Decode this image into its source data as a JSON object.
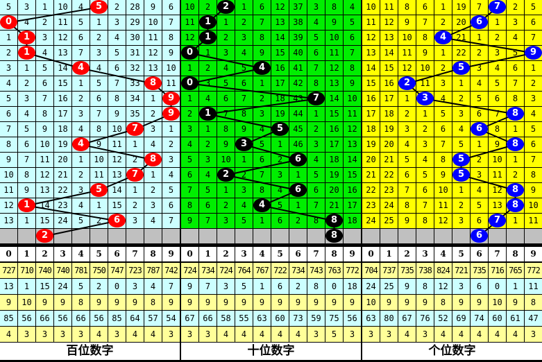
{
  "chart_data": {
    "type": "table",
    "colors": {
      "hundreds_bg": "#ccffff",
      "tens_bg": "#00ee00",
      "ones_bg": "#ffff00",
      "gray_row": "#c0c0c0",
      "stat_yellow": "#ffff99",
      "stat_cyan": "#ccffff",
      "ball_hundreds": "#ff0000",
      "ball_tens": "#000000",
      "ball_ones": "#0000ff"
    },
    "sections": [
      {
        "title": "百位数字",
        "digits": [
          "0",
          "1",
          "2",
          "3",
          "4",
          "5",
          "6",
          "7",
          "8",
          "9"
        ],
        "rows": [
          {
            "cells": [
              "5",
              "3",
              "1",
              "10",
              "4",
              "5",
              "2",
              "28",
              "9",
              "6"
            ],
            "ball": 5
          },
          {
            "cells": [
              "0",
              "4",
              "2",
              "11",
              "5",
              "1",
              "3",
              "29",
              "10",
              "7"
            ],
            "ball": 0
          },
          {
            "cells": [
              "1",
              "1",
              "3",
              "12",
              "6",
              "2",
              "4",
              "30",
              "11",
              "8"
            ],
            "ball": 1
          },
          {
            "cells": [
              "2",
              "1",
              "4",
              "13",
              "7",
              "3",
              "5",
              "31",
              "12",
              "9"
            ],
            "ball": 1
          },
          {
            "cells": [
              "3",
              "1",
              "5",
              "14",
              "4",
              "4",
              "6",
              "32",
              "13",
              "10"
            ],
            "ball": 4
          },
          {
            "cells": [
              "4",
              "2",
              "6",
              "15",
              "1",
              "5",
              "7",
              "33",
              "8",
              "11"
            ],
            "ball": 8
          },
          {
            "cells": [
              "5",
              "3",
              "7",
              "16",
              "2",
              "6",
              "8",
              "34",
              "1",
              "9"
            ],
            "ball": 9
          },
          {
            "cells": [
              "6",
              "4",
              "8",
              "17",
              "3",
              "7",
              "9",
              "35",
              "2",
              "9"
            ],
            "ball": 9
          },
          {
            "cells": [
              "7",
              "5",
              "9",
              "18",
              "4",
              "8",
              "10",
              "7",
              "3",
              "1"
            ],
            "ball": 7
          },
          {
            "cells": [
              "8",
              "6",
              "10",
              "19",
              "4",
              "9",
              "11",
              "1",
              "4",
              "2"
            ],
            "ball": 4
          },
          {
            "cells": [
              "9",
              "7",
              "11",
              "20",
              "1",
              "10",
              "12",
              "2",
              "8",
              "3"
            ],
            "ball": 8
          },
          {
            "cells": [
              "10",
              "8",
              "12",
              "21",
              "2",
              "11",
              "13",
              "7",
              "1",
              "4"
            ],
            "ball": 7
          },
          {
            "cells": [
              "11",
              "9",
              "13",
              "22",
              "3",
              "5",
              "14",
              "1",
              "2",
              "5"
            ],
            "ball": 5
          },
          {
            "cells": [
              "12",
              "1",
              "14",
              "23",
              "4",
              "1",
              "15",
              "2",
              "3",
              "6"
            ],
            "ball": 1
          },
          {
            "cells": [
              "13",
              "1",
              "15",
              "24",
              "5",
              "2",
              "6",
              "3",
              "4",
              "7"
            ],
            "ball": 6
          }
        ],
        "next": {
          "value": "2",
          "ball": 2
        },
        "stats": [
          [
            "727",
            "710",
            "740",
            "740",
            "781",
            "750",
            "747",
            "723",
            "787",
            "742"
          ],
          [
            "13",
            "1",
            "15",
            "24",
            "5",
            "2",
            "0",
            "3",
            "4",
            "7"
          ],
          [
            "9",
            "10",
            "9",
            "9",
            "8",
            "9",
            "9",
            "9",
            "8",
            "9"
          ],
          [
            "85",
            "56",
            "66",
            "56",
            "66",
            "56",
            "85",
            "64",
            "57",
            "54"
          ],
          [
            "4",
            "3",
            "3",
            "3",
            "3",
            "4",
            "3",
            "4",
            "4",
            "3"
          ]
        ]
      },
      {
        "title": "十位数字",
        "digits": [
          "0",
          "1",
          "2",
          "3",
          "4",
          "5",
          "6",
          "7",
          "8",
          "9"
        ],
        "rows": [
          {
            "cells": [
              "10",
              "2",
              "2",
              "1",
              "6",
              "12",
              "37",
              "3",
              "8",
              "4"
            ],
            "ball": 2
          },
          {
            "cells": [
              "11",
              "1",
              "1",
              "2",
              "7",
              "13",
              "38",
              "4",
              "9",
              "5"
            ],
            "ball": 1
          },
          {
            "cells": [
              "12",
              "1",
              "2",
              "3",
              "8",
              "14",
              "39",
              "5",
              "10",
              "6"
            ],
            "ball": 1
          },
          {
            "cells": [
              "0",
              "1",
              "3",
              "4",
              "9",
              "15",
              "40",
              "6",
              "11",
              "7"
            ],
            "ball": 0
          },
          {
            "cells": [
              "1",
              "2",
              "4",
              "5",
              "4",
              "16",
              "41",
              "7",
              "12",
              "8"
            ],
            "ball": 4
          },
          {
            "cells": [
              "0",
              "3",
              "5",
              "6",
              "1",
              "17",
              "42",
              "8",
              "13",
              "9"
            ],
            "ball": 0
          },
          {
            "cells": [
              "1",
              "4",
              "6",
              "7",
              "2",
              "18",
              "43",
              "7",
              "14",
              "10"
            ],
            "ball": 7
          },
          {
            "cells": [
              "2",
              "1",
              "7",
              "8",
              "3",
              "19",
              "44",
              "1",
              "15",
              "11"
            ],
            "ball": 1
          },
          {
            "cells": [
              "3",
              "1",
              "8",
              "9",
              "4",
              "5",
              "45",
              "2",
              "16",
              "12"
            ],
            "ball": 5
          },
          {
            "cells": [
              "4",
              "2",
              "9",
              "3",
              "5",
              "1",
              "46",
              "3",
              "17",
              "13"
            ],
            "ball": 3
          },
          {
            "cells": [
              "5",
              "3",
              "10",
              "1",
              "6",
              "2",
              "6",
              "4",
              "18",
              "14"
            ],
            "ball": 6
          },
          {
            "cells": [
              "6",
              "4",
              "2",
              "2",
              "7",
              "3",
              "1",
              "5",
              "19",
              "15"
            ],
            "ball": 2
          },
          {
            "cells": [
              "7",
              "5",
              "1",
              "3",
              "8",
              "4",
              "6",
              "6",
              "20",
              "16"
            ],
            "ball": 6
          },
          {
            "cells": [
              "8",
              "6",
              "2",
              "4",
              "4",
              "5",
              "1",
              "7",
              "21",
              "17"
            ],
            "ball": 4
          },
          {
            "cells": [
              "9",
              "7",
              "3",
              "5",
              "1",
              "6",
              "2",
              "8",
              "8",
              "18"
            ],
            "ball": 8
          }
        ],
        "next": {
          "value": "8",
          "ball": 8
        },
        "stats": [
          [
            "724",
            "734",
            "724",
            "764",
            "767",
            "722",
            "734",
            "743",
            "763",
            "772"
          ],
          [
            "9",
            "7",
            "3",
            "5",
            "1",
            "6",
            "2",
            "8",
            "0",
            "18"
          ],
          [
            "9",
            "9",
            "9",
            "9",
            "9",
            "9",
            "9",
            "9",
            "9",
            "9"
          ],
          [
            "67",
            "66",
            "58",
            "55",
            "63",
            "60",
            "73",
            "59",
            "75",
            "56"
          ],
          [
            "3",
            "3",
            "4",
            "4",
            "4",
            "4",
            "4",
            "3",
            "5",
            "3"
          ]
        ]
      },
      {
        "title": "个位数字",
        "digits": [
          "0",
          "1",
          "2",
          "3",
          "4",
          "5",
          "6",
          "7",
          "8",
          "9"
        ],
        "rows": [
          {
            "cells": [
              "10",
              "11",
              "8",
              "6",
              "1",
              "19",
              "7",
              "7",
              "2",
              "5"
            ],
            "ball": 7
          },
          {
            "cells": [
              "11",
              "12",
              "9",
              "7",
              "2",
              "20",
              "6",
              "1",
              "3",
              "6"
            ],
            "ball": 6
          },
          {
            "cells": [
              "12",
              "13",
              "10",
              "8",
              "4",
              "21",
              "1",
              "2",
              "4",
              "7"
            ],
            "ball": 4
          },
          {
            "cells": [
              "13",
              "14",
              "11",
              "9",
              "1",
              "22",
              "2",
              "3",
              "5",
              "9"
            ],
            "ball": 9
          },
          {
            "cells": [
              "14",
              "15",
              "12",
              "10",
              "2",
              "5",
              "3",
              "4",
              "6",
              "1"
            ],
            "ball": 5
          },
          {
            "cells": [
              "15",
              "16",
              "2",
              "11",
              "3",
              "1",
              "4",
              "5",
              "7",
              "2"
            ],
            "ball": 2
          },
          {
            "cells": [
              "16",
              "17",
              "1",
              "3",
              "4",
              "2",
              "5",
              "6",
              "8",
              "3"
            ],
            "ball": 3
          },
          {
            "cells": [
              "17",
              "18",
              "2",
              "1",
              "5",
              "3",
              "6",
              "7",
              "8",
              "4"
            ],
            "ball": 8
          },
          {
            "cells": [
              "18",
              "19",
              "3",
              "2",
              "6",
              "4",
              "6",
              "8",
              "1",
              "5"
            ],
            "ball": 6
          },
          {
            "cells": [
              "19",
              "20",
              "4",
              "3",
              "7",
              "5",
              "1",
              "9",
              "8",
              "6"
            ],
            "ball": 8
          },
          {
            "cells": [
              "20",
              "21",
              "5",
              "4",
              "8",
              "5",
              "2",
              "10",
              "1",
              "7"
            ],
            "ball": 5
          },
          {
            "cells": [
              "21",
              "22",
              "6",
              "5",
              "9",
              "5",
              "3",
              "11",
              "2",
              "8"
            ],
            "ball": 5
          },
          {
            "cells": [
              "22",
              "23",
              "7",
              "6",
              "10",
              "1",
              "4",
              "12",
              "8",
              "9"
            ],
            "ball": 8
          },
          {
            "cells": [
              "23",
              "24",
              "8",
              "7",
              "11",
              "2",
              "5",
              "13",
              "8",
              "10"
            ],
            "ball": 8
          },
          {
            "cells": [
              "24",
              "25",
              "9",
              "8",
              "12",
              "3",
              "6",
              "7",
              "1",
              "11"
            ],
            "ball": 7
          }
        ],
        "next": {
          "value": "6",
          "ball": 6
        },
        "stats": [
          [
            "704",
            "737",
            "735",
            "738",
            "824",
            "721",
            "735",
            "716",
            "765",
            "772"
          ],
          [
            "24",
            "25",
            "9",
            "8",
            "12",
            "3",
            "6",
            "0",
            "1",
            "11"
          ],
          [
            "10",
            "9",
            "9",
            "9",
            "8",
            "9",
            "9",
            "10",
            "9",
            "8"
          ],
          [
            "63",
            "80",
            "67",
            "76",
            "52",
            "69",
            "74",
            "60",
            "61",
            "47"
          ],
          [
            "3",
            "3",
            "4",
            "3",
            "4",
            "4",
            "4",
            "4",
            "4",
            "3"
          ]
        ]
      }
    ]
  }
}
